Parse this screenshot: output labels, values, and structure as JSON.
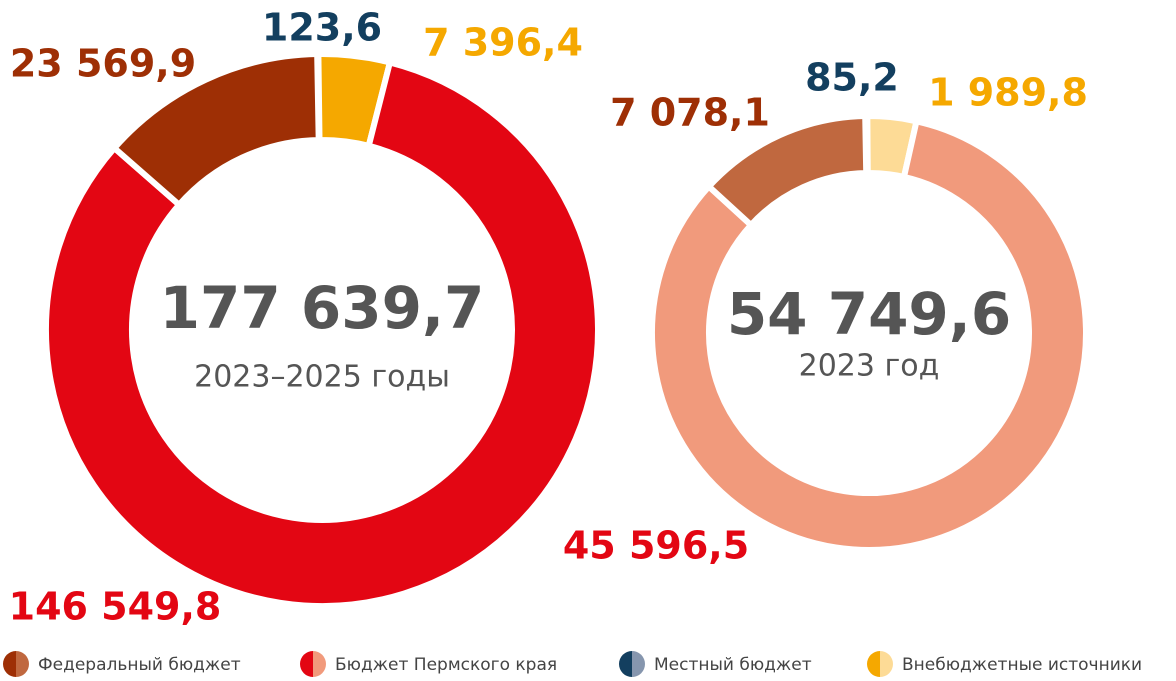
{
  "legend": [
    {
      "name": "Федеральный бюджет",
      "colors": [
        "#9e2f05",
        "#c0683f"
      ]
    },
    {
      "name": "Бюджет Пермского края",
      "colors": [
        "#e30613",
        "#f19a7c"
      ]
    },
    {
      "name": "Местный бюджет",
      "colors": [
        "#133f5f",
        "#8696ae"
      ]
    },
    {
      "name": "Внебюджетные источники",
      "colors": [
        "#f5a800",
        "#fddb96"
      ]
    }
  ],
  "chart_data": [
    {
      "type": "donut",
      "center_label": "177 639,7",
      "subtitle": "2023–2025 годы",
      "values": [
        123.6,
        7396.4,
        146549.8,
        23569.9
      ],
      "value_labels": [
        "123,6",
        "7 396,4",
        "146 549,8",
        "23 569,9"
      ],
      "colors": [
        "#133f5f",
        "#f5a800",
        "#e30613",
        "#9e2f05"
      ],
      "label_colors": [
        "#133f5f",
        "#f5a800",
        "#e30613",
        "#9e2f05"
      ]
    },
    {
      "type": "donut",
      "center_label": "54 749,6",
      "subtitle": "2023 год",
      "values": [
        85.2,
        1989.8,
        45596.5,
        7078.1
      ],
      "value_labels": [
        "85,2",
        "1 989,8",
        "45 596,5",
        "7 078,1"
      ],
      "colors": [
        "#8696ae",
        "#fddb96",
        "#f19a7c",
        "#c0683f"
      ],
      "label_colors": [
        "#133f5f",
        "#f5a800",
        "#e30613",
        "#9e2f05"
      ]
    }
  ]
}
